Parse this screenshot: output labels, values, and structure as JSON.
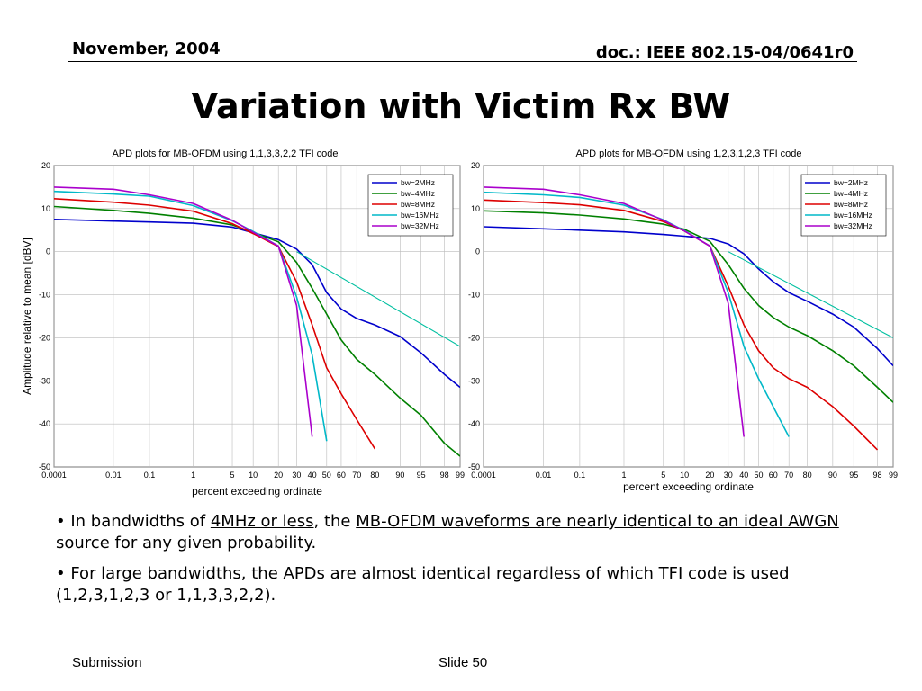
{
  "header": {
    "date": "November, 2004",
    "doc_id": "doc.: IEEE 802.15-04/0641r0"
  },
  "slide_title": "Variation with Victim Rx BW",
  "bullets": [
    {
      "parts": [
        {
          "t": "• In bandwidths of ",
          "u": false
        },
        {
          "t": "4MHz or less",
          "u": true
        },
        {
          "t": ", the ",
          "u": false
        },
        {
          "t": "MB-OFDM waveforms are nearly identical to an ideal AWGN",
          "u": true
        },
        {
          "t": " source for any given probability.",
          "u": false
        }
      ]
    },
    {
      "parts": [
        {
          "t": "• For large bandwidths, the APDs are almost identical regardless of which TFI code is used (1,2,3,1,2,3 or 1,1,3,3,2,2).",
          "u": false
        }
      ]
    }
  ],
  "footer": {
    "left": "Submission",
    "center": "Slide 50"
  },
  "colors": {
    "bw=2MHz": "#0000cc",
    "bw=4MHz": "#008000",
    "bw=8MHz": "#dd0000",
    "bw=16MHz": "#00b8c8",
    "bw=32MHz": "#aa00cc",
    "awgn": "#00bfa0"
  },
  "chart_data": [
    {
      "type": "line",
      "title": "APD plots for MB-OFDM using 1,1,3,3,2,2 TFI code",
      "xlabel": "percent exceeding ordinate",
      "ylabel": "Amplitude relative to mean [dBV]",
      "ylim": [
        -50,
        20
      ],
      "yticks": [
        20,
        10,
        0,
        -10,
        -20,
        -30,
        -40,
        -50
      ],
      "xticks": [
        "0.0001",
        "0.01",
        "0.1",
        "1",
        "5",
        "10",
        "20",
        "30",
        "40",
        "50",
        "60",
        "70",
        "80",
        "90",
        "95",
        "98",
        "99"
      ],
      "xscale": "probability (Rayleigh)",
      "grid": true,
      "legend_position": "top-right",
      "legend": [
        "bw=2MHz",
        "bw=4MHz",
        "bw=8MHz",
        "bw=16MHz",
        "bw=32MHz"
      ],
      "series": [
        {
          "name": "bw=2MHz",
          "x": [
            0.0001,
            0.01,
            0.1,
            1,
            5,
            10,
            20,
            30,
            40,
            50,
            60,
            70,
            80,
            90,
            95,
            98,
            99
          ],
          "y": [
            7.5,
            7.1,
            6.9,
            6.6,
            5.7,
            4.4,
            2.8,
            0.6,
            -3,
            -9.5,
            -13.3,
            -15.5,
            -17,
            -19.7,
            -23.5,
            -28.5,
            -31.5
          ]
        },
        {
          "name": "bw=4MHz",
          "x": [
            0.0001,
            0.01,
            0.1,
            1,
            5,
            10,
            20,
            30,
            40,
            50,
            60,
            70,
            80,
            90,
            95,
            98,
            99
          ],
          "y": [
            10.5,
            9.6,
            8.9,
            7.8,
            6.2,
            4.5,
            2.3,
            -2.5,
            -8.5,
            -14.5,
            -20.5,
            -25,
            -28.5,
            -34,
            -38,
            -44.5,
            -47.5
          ]
        },
        {
          "name": "bw=8MHz",
          "x": [
            0.0001,
            0.01,
            0.1,
            1,
            5,
            10,
            20,
            30,
            40,
            50,
            60,
            70,
            80
          ],
          "y": [
            12.3,
            11.5,
            10.8,
            9.4,
            6.5,
            4.2,
            1.2,
            -7,
            -17,
            -27,
            -33,
            -39,
            -45.8
          ]
        },
        {
          "name": "bw=16MHz",
          "x": [
            0.0001,
            0.01,
            0.1,
            1,
            5,
            10,
            20,
            30,
            40,
            50
          ],
          "y": [
            14,
            13.4,
            12.9,
            10.7,
            7.2,
            4.7,
            1.3,
            -10.5,
            -24,
            -44
          ]
        },
        {
          "name": "bw=32MHz",
          "x": [
            0.0001,
            0.01,
            0.1,
            1,
            5,
            10,
            20,
            30,
            40
          ],
          "y": [
            15,
            14.5,
            13.2,
            11.2,
            7.3,
            4.5,
            1.3,
            -12.5,
            -43
          ]
        },
        {
          "name": "",
          "x": [
            30,
            99
          ],
          "y": [
            0,
            -22
          ]
        }
      ]
    },
    {
      "type": "line",
      "title": "APD plots for MB-OFDM using 1,2,3,1,2,3 TFI code",
      "xlabel": "percent exceeding ordinate",
      "ylabel": "",
      "ylim": [
        -50,
        20
      ],
      "yticks": [
        20,
        10,
        0,
        -10,
        -20,
        -30,
        -40,
        -50
      ],
      "xticks": [
        "0.0001",
        "0.01",
        "0.1",
        "1",
        "5",
        "10",
        "20",
        "30",
        "40",
        "50",
        "60",
        "70",
        "80",
        "90",
        "95",
        "98",
        "99"
      ],
      "xscale": "probability (Rayleigh)",
      "grid": true,
      "legend_position": "top-right",
      "legend": [
        "bw=2MHz",
        "bw=4MHz",
        "bw=8MHz",
        "bw=16MHz",
        "bw=32MHz"
      ],
      "series": [
        {
          "name": "bw=2MHz",
          "x": [
            0.0001,
            0.01,
            0.1,
            1,
            5,
            10,
            20,
            30,
            40,
            50,
            60,
            70,
            80,
            90,
            95,
            98,
            99
          ],
          "y": [
            5.8,
            5.3,
            5,
            4.6,
            4,
            3.6,
            3.1,
            1.8,
            -0.5,
            -4,
            -7,
            -9.5,
            -11.5,
            -14.5,
            -17.5,
            -22.5,
            -26.5
          ]
        },
        {
          "name": "bw=4MHz",
          "x": [
            0.0001,
            0.01,
            0.1,
            1,
            5,
            10,
            20,
            30,
            40,
            50,
            60,
            70,
            80,
            90,
            95,
            98,
            99
          ],
          "y": [
            9.5,
            9,
            8.5,
            7.6,
            6.4,
            5.2,
            2.4,
            -3,
            -8.5,
            -12.5,
            -15.3,
            -17.5,
            -19.5,
            -23,
            -26.5,
            -31.5,
            -35
          ]
        },
        {
          "name": "bw=8MHz",
          "x": [
            0.0001,
            0.01,
            0.1,
            1,
            5,
            10,
            20,
            30,
            40,
            50,
            60,
            70,
            80,
            90,
            95,
            98
          ],
          "y": [
            12,
            11.4,
            10.9,
            9.6,
            7,
            4.8,
            1.3,
            -8,
            -17,
            -23,
            -27,
            -29.5,
            -31.5,
            -36,
            -40.5,
            -46
          ]
        },
        {
          "name": "bw=16MHz",
          "x": [
            0.0001,
            0.01,
            0.1,
            1,
            5,
            10,
            20,
            30,
            40,
            50,
            70
          ],
          "y": [
            13.8,
            13.2,
            12.6,
            10.8,
            7.4,
            4.9,
            1.3,
            -9.5,
            -22,
            -29.5,
            -43
          ]
        },
        {
          "name": "bw=32MHz",
          "x": [
            0.0001,
            0.01,
            0.1,
            1,
            5,
            10,
            20,
            30,
            40
          ],
          "y": [
            15,
            14.5,
            13.2,
            11.2,
            7.3,
            4.8,
            1.3,
            -12,
            -43
          ]
        },
        {
          "name": "",
          "x": [
            30,
            99
          ],
          "y": [
            0,
            -20
          ]
        }
      ]
    }
  ]
}
